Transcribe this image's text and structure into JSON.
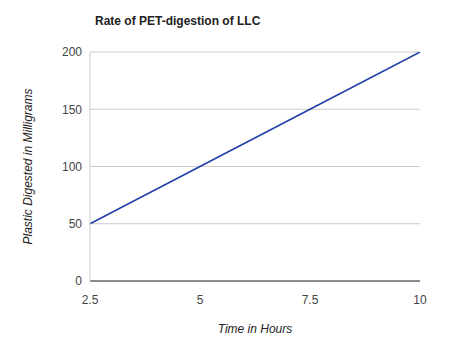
{
  "chart_data": {
    "type": "line",
    "title": "Rate of PET-digestion of LLC",
    "xlabel": "Time in Hours",
    "ylabel": "Plastic Digested in Milligrams",
    "categories": [
      "2.5",
      "5",
      "7.5",
      "10"
    ],
    "values": [
      50,
      100,
      150,
      200
    ],
    "color": "#1f3fa8",
    "ylim": [
      0,
      200
    ],
    "yticks": [
      0,
      50,
      100,
      150,
      200
    ],
    "grid": true
  }
}
